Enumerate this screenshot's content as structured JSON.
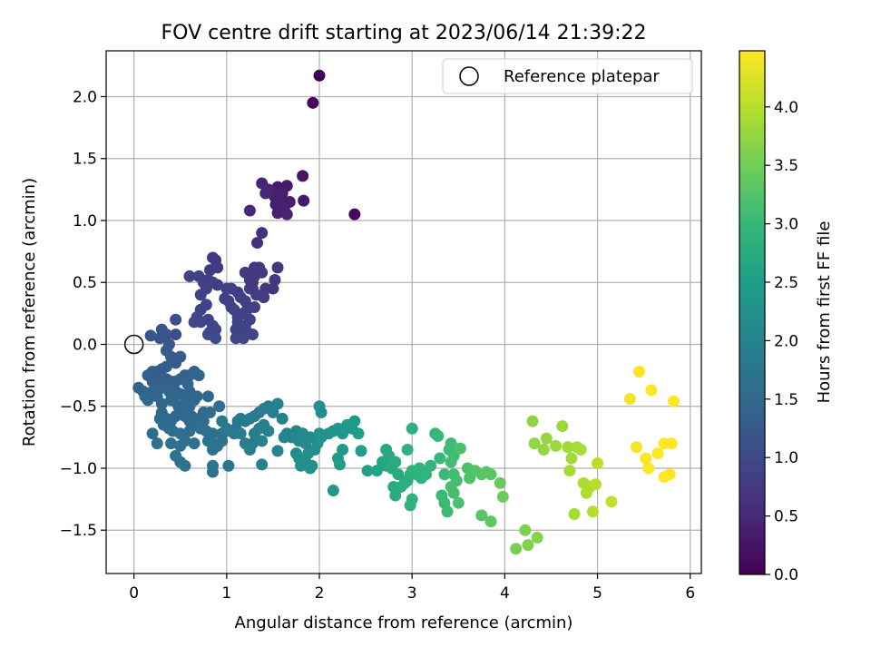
{
  "chart_data": {
    "type": "scatter",
    "title": "FOV centre drift starting at 2023/06/14 21:39:22",
    "xlabel": "Angular distance from reference (arcmin)",
    "ylabel": "Rotation from reference (arcmin)",
    "xlim": [
      -0.3,
      6.12
    ],
    "ylim": [
      -1.85,
      2.37
    ],
    "xticks": [
      0,
      1,
      2,
      3,
      4,
      5,
      6
    ],
    "yticks": [
      -1.5,
      -1.0,
      -0.5,
      0.0,
      0.5,
      1.0,
      1.5,
      2.0
    ],
    "grid": true,
    "legend": {
      "placement": "top-right",
      "entries": [
        "Reference platepar"
      ]
    },
    "reference_point": {
      "x": 0.0,
      "y": 0.0,
      "label": "Reference platepar"
    },
    "colorbar": {
      "label": "Hours from first FF file",
      "colormap": "viridis",
      "range": [
        0.0,
        4.48
      ],
      "ticks": [
        0.0,
        0.5,
        1.0,
        1.5,
        2.0,
        2.5,
        3.0,
        3.5,
        4.0
      ]
    },
    "points": [
      [
        2.0,
        2.17,
        0.0
      ],
      [
        1.93,
        1.95,
        0.05
      ],
      [
        2.38,
        1.05,
        0.12
      ],
      [
        1.82,
        1.36,
        0.25
      ],
      [
        1.65,
        1.28,
        0.3
      ],
      [
        1.55,
        1.27,
        0.32
      ],
      [
        1.6,
        1.22,
        0.35
      ],
      [
        1.83,
        1.16,
        0.3
      ],
      [
        1.52,
        1.19,
        0.35
      ],
      [
        1.58,
        1.15,
        0.38
      ],
      [
        1.5,
        1.22,
        0.4
      ],
      [
        1.68,
        1.15,
        0.38
      ],
      [
        1.53,
        1.13,
        0.38
      ],
      [
        1.62,
        1.1,
        0.42
      ],
      [
        1.55,
        1.06,
        0.4
      ],
      [
        1.65,
        1.05,
        0.45
      ],
      [
        1.45,
        1.25,
        0.42
      ],
      [
        1.38,
        1.3,
        0.45
      ],
      [
        1.42,
        1.22,
        0.5
      ],
      [
        1.25,
        1.08,
        0.5
      ],
      [
        1.58,
        1.22,
        0.38
      ],
      [
        1.38,
        0.9,
        0.6
      ],
      [
        1.33,
        0.82,
        0.65
      ],
      [
        1.3,
        0.55,
        0.7
      ],
      [
        1.35,
        0.62,
        0.72
      ],
      [
        1.28,
        0.5,
        0.7
      ],
      [
        1.42,
        0.45,
        0.75
      ],
      [
        1.52,
        0.52,
        0.72
      ],
      [
        1.55,
        0.62,
        0.7
      ],
      [
        1.5,
        0.45,
        0.75
      ],
      [
        1.4,
        0.38,
        0.8
      ],
      [
        1.32,
        0.4,
        0.8
      ],
      [
        1.25,
        0.45,
        0.82
      ],
      [
        1.2,
        0.35,
        0.85
      ],
      [
        1.22,
        0.28,
        0.85
      ],
      [
        1.3,
        0.3,
        0.85
      ],
      [
        1.25,
        0.2,
        0.88
      ],
      [
        1.2,
        0.15,
        0.9
      ],
      [
        1.15,
        0.1,
        0.9
      ],
      [
        1.1,
        0.05,
        0.92
      ],
      [
        1.18,
        0.05,
        0.92
      ],
      [
        1.22,
        0.1,
        0.9
      ],
      [
        1.28,
        0.08,
        0.92
      ],
      [
        1.12,
        0.18,
        0.9
      ],
      [
        1.05,
        0.3,
        0.88
      ],
      [
        1.0,
        0.45,
        0.85
      ],
      [
        1.05,
        0.45,
        0.85
      ],
      [
        1.12,
        0.42,
        0.85
      ],
      [
        1.2,
        0.58,
        0.78
      ],
      [
        1.27,
        0.58,
        0.78
      ],
      [
        1.3,
        0.62,
        0.75
      ],
      [
        1.38,
        0.58,
        0.75
      ],
      [
        1.25,
        0.52,
        0.78
      ],
      [
        1.28,
        0.45,
        0.78
      ],
      [
        1.15,
        0.38,
        0.85
      ],
      [
        1.08,
        0.28,
        0.88
      ],
      [
        1.12,
        0.22,
        0.88
      ],
      [
        1.18,
        0.25,
        0.88
      ],
      [
        1.1,
        0.12,
        0.9
      ],
      [
        0.98,
        0.37,
        0.85
      ],
      [
        1.02,
        0.35,
        0.85
      ],
      [
        0.85,
        0.7,
        0.75
      ],
      [
        0.88,
        0.68,
        0.78
      ],
      [
        0.9,
        0.62,
        0.78
      ],
      [
        0.82,
        0.6,
        0.78
      ],
      [
        0.8,
        0.52,
        0.8
      ],
      [
        0.85,
        0.5,
        0.82
      ],
      [
        0.9,
        0.48,
        0.82
      ],
      [
        0.78,
        0.45,
        0.85
      ],
      [
        0.72,
        0.4,
        0.88
      ],
      [
        0.7,
        0.55,
        0.85
      ],
      [
        0.75,
        0.5,
        0.85
      ],
      [
        0.78,
        0.32,
        0.9
      ],
      [
        0.72,
        0.28,
        0.9
      ],
      [
        0.68,
        0.22,
        0.92
      ],
      [
        0.65,
        0.18,
        0.95
      ],
      [
        0.72,
        0.18,
        0.92
      ],
      [
        0.8,
        0.2,
        0.9
      ],
      [
        0.85,
        0.15,
        0.95
      ],
      [
        0.82,
        0.1,
        0.98
      ],
      [
        0.88,
        0.12,
        0.95
      ],
      [
        0.6,
        0.55,
        0.9
      ],
      [
        0.88,
        0.05,
        1.0
      ],
      [
        0.8,
        0.08,
        1.0
      ],
      [
        0.45,
        0.2,
        1.05
      ],
      [
        0.45,
        0.08,
        1.1
      ],
      [
        0.3,
        0.12,
        1.12
      ],
      [
        0.35,
        0.08,
        1.15
      ],
      [
        0.28,
        0.05,
        1.15
      ],
      [
        0.18,
        0.07,
        1.18
      ],
      [
        0.38,
        0.0,
        1.2
      ],
      [
        0.35,
        -0.05,
        1.25
      ],
      [
        0.4,
        -0.1,
        1.25
      ],
      [
        0.5,
        -0.1,
        1.25
      ],
      [
        0.45,
        -0.15,
        1.28
      ],
      [
        0.35,
        -0.18,
        1.3
      ],
      [
        0.3,
        -0.2,
        1.3
      ],
      [
        0.25,
        -0.22,
        1.3
      ],
      [
        0.2,
        -0.22,
        1.32
      ],
      [
        0.15,
        -0.25,
        1.35
      ],
      [
        0.2,
        -0.3,
        1.35
      ],
      [
        0.28,
        -0.3,
        1.35
      ],
      [
        0.35,
        -0.28,
        1.35
      ],
      [
        0.4,
        -0.3,
        1.38
      ],
      [
        0.45,
        -0.3,
        1.38
      ],
      [
        0.5,
        -0.28,
        1.38
      ],
      [
        0.55,
        -0.25,
        1.4
      ],
      [
        0.6,
        -0.25,
        1.4
      ],
      [
        0.65,
        -0.22,
        1.4
      ],
      [
        0.7,
        -0.25,
        1.42
      ],
      [
        0.3,
        -0.35,
        1.4
      ],
      [
        0.38,
        -0.38,
        1.42
      ],
      [
        0.45,
        -0.38,
        1.42
      ],
      [
        0.5,
        -0.4,
        1.42
      ],
      [
        0.55,
        -0.42,
        1.45
      ],
      [
        0.6,
        -0.38,
        1.45
      ],
      [
        0.25,
        -0.42,
        1.45
      ],
      [
        0.3,
        -0.48,
        1.45
      ],
      [
        0.4,
        -0.45,
        1.48
      ],
      [
        0.48,
        -0.5,
        1.48
      ],
      [
        0.55,
        -0.45,
        1.5
      ],
      [
        0.6,
        -0.5,
        1.5
      ],
      [
        0.05,
        -0.35,
        1.45
      ],
      [
        0.1,
        -0.38,
        1.45
      ],
      [
        0.15,
        -0.45,
        1.48
      ],
      [
        0.3,
        -0.55,
        1.5
      ],
      [
        0.35,
        -0.6,
        1.52
      ],
      [
        0.28,
        -0.6,
        1.52
      ],
      [
        0.4,
        -0.62,
        1.55
      ],
      [
        0.45,
        -0.58,
        1.52
      ],
      [
        0.55,
        -0.58,
        1.55
      ],
      [
        0.62,
        -0.58,
        1.55
      ],
      [
        0.7,
        -0.6,
        1.55
      ],
      [
        0.75,
        -0.62,
        1.55
      ],
      [
        0.32,
        -0.65,
        1.55
      ],
      [
        0.38,
        -0.68,
        1.58
      ],
      [
        0.42,
        -0.7,
        1.58
      ],
      [
        0.5,
        -0.72,
        1.6
      ],
      [
        0.6,
        -0.7,
        1.6
      ],
      [
        0.65,
        -0.65,
        1.6
      ],
      [
        0.72,
        -0.68,
        1.6
      ],
      [
        0.78,
        -0.7,
        1.62
      ],
      [
        0.85,
        -0.72,
        1.62
      ],
      [
        0.55,
        -0.78,
        1.62
      ],
      [
        0.65,
        -0.8,
        1.65
      ],
      [
        0.5,
        -0.82,
        1.65
      ],
      [
        0.4,
        -0.8,
        1.65
      ],
      [
        0.25,
        -0.8,
        1.65
      ],
      [
        0.2,
        -0.72,
        1.62
      ],
      [
        0.85,
        -0.8,
        1.68
      ],
      [
        0.9,
        -0.82,
        1.68
      ],
      [
        0.95,
        -0.78,
        1.68
      ],
      [
        0.85,
        -0.85,
        1.7
      ],
      [
        0.8,
        -0.78,
        1.7
      ],
      [
        0.45,
        -0.9,
        1.7
      ],
      [
        0.5,
        -0.95,
        1.72
      ],
      [
        0.55,
        -0.98,
        1.72
      ],
      [
        0.85,
        -0.98,
        1.75
      ],
      [
        0.85,
        -1.03,
        1.75
      ],
      [
        1.02,
        -0.98,
        1.75
      ],
      [
        0.8,
        -0.42,
        1.5
      ],
      [
        0.75,
        -0.55,
        1.55
      ],
      [
        0.65,
        -0.45,
        1.52
      ],
      [
        0.82,
        -0.55,
        1.58
      ],
      [
        0.92,
        -0.5,
        1.6
      ],
      [
        0.95,
        -0.72,
        1.65
      ],
      [
        1.0,
        -0.7,
        1.7
      ],
      [
        1.1,
        -0.68,
        1.72
      ],
      [
        1.12,
        -0.62,
        1.75
      ],
      [
        0.12,
        -0.42,
        1.5
      ],
      [
        0.2,
        -0.38,
        1.48
      ],
      [
        0.42,
        -0.45,
        1.48
      ],
      [
        0.52,
        -0.55,
        1.52
      ],
      [
        0.6,
        -0.62,
        1.55
      ],
      [
        0.68,
        -0.42,
        1.5
      ],
      [
        0.58,
        -0.32,
        1.45
      ],
      [
        1.15,
        -0.6,
        1.8
      ],
      [
        1.2,
        -0.62,
        1.82
      ],
      [
        1.25,
        -0.6,
        1.85
      ],
      [
        1.3,
        -0.58,
        1.85
      ],
      [
        1.35,
        -0.55,
        1.88
      ],
      [
        1.4,
        -0.52,
        1.9
      ],
      [
        1.45,
        -0.5,
        1.92
      ],
      [
        1.5,
        -0.55,
        1.95
      ],
      [
        1.55,
        -0.48,
        1.95
      ],
      [
        1.6,
        -0.6,
        1.98
      ],
      [
        1.65,
        -0.72,
        2.0
      ],
      [
        1.7,
        -0.75,
        2.02
      ],
      [
        1.75,
        -0.7,
        2.05
      ],
      [
        1.78,
        -0.78,
        2.08
      ],
      [
        1.82,
        -0.72,
        2.1
      ],
      [
        1.85,
        -0.8,
        2.12
      ],
      [
        1.9,
        -0.75,
        2.12
      ],
      [
        1.35,
        -0.68,
        1.92
      ],
      [
        1.4,
        -0.65,
        1.95
      ],
      [
        1.45,
        -0.7,
        1.98
      ],
      [
        1.3,
        -0.72,
        1.9
      ],
      [
        1.28,
        -0.8,
        1.92
      ],
      [
        1.38,
        -0.78,
        1.95
      ],
      [
        1.15,
        -0.72,
        1.85
      ],
      [
        1.2,
        -0.8,
        1.88
      ],
      [
        1.08,
        -0.72,
        1.85
      ],
      [
        1.0,
        -0.68,
        1.82
      ],
      [
        0.95,
        -0.62,
        1.8
      ],
      [
        1.25,
        -0.85,
        1.95
      ],
      [
        1.38,
        -0.97,
        1.98
      ],
      [
        1.55,
        -0.86,
        2.02
      ],
      [
        1.75,
        -0.88,
        2.15
      ],
      [
        1.78,
        -0.92,
        2.18
      ],
      [
        1.8,
        -0.98,
        2.2
      ],
      [
        1.85,
        -0.95,
        2.2
      ],
      [
        1.88,
        -0.88,
        2.22
      ],
      [
        1.92,
        -0.98,
        2.22
      ],
      [
        1.9,
        -1.0,
        2.25
      ],
      [
        1.95,
        -0.85,
        2.22
      ],
      [
        1.98,
        -0.8,
        2.25
      ],
      [
        2.0,
        -0.72,
        2.25
      ],
      [
        2.02,
        -0.75,
        2.28
      ],
      [
        2.0,
        -0.5,
        2.2
      ],
      [
        2.02,
        -0.55,
        2.22
      ],
      [
        2.1,
        -0.72,
        2.3
      ],
      [
        2.15,
        -0.7,
        2.32
      ],
      [
        2.2,
        -0.68,
        2.35
      ],
      [
        2.25,
        -0.72,
        2.38
      ],
      [
        2.3,
        -0.65,
        2.4
      ],
      [
        2.38,
        -0.62,
        2.42
      ],
      [
        2.42,
        -0.72,
        2.45
      ],
      [
        2.25,
        -0.85,
        2.4
      ],
      [
        2.2,
        -0.92,
        2.42
      ],
      [
        2.22,
        -0.97,
        2.45
      ],
      [
        2.15,
        -1.18,
        2.35
      ],
      [
        2.45,
        -0.86,
        2.5
      ],
      [
        2.52,
        -1.02,
        2.52
      ],
      [
        1.62,
        -0.75,
        2.05
      ],
      [
        2.35,
        -0.68,
        2.4
      ],
      [
        2.62,
        -1.02,
        2.58
      ],
      [
        2.68,
        -0.95,
        2.62
      ],
      [
        2.72,
        -0.98,
        2.65
      ],
      [
        2.72,
        -0.85,
        2.68
      ],
      [
        2.75,
        -0.9,
        2.7
      ],
      [
        2.78,
        -1.0,
        2.72
      ],
      [
        2.82,
        -0.95,
        2.75
      ],
      [
        2.85,
        -1.05,
        2.75
      ],
      [
        2.8,
        -1.15,
        2.72
      ],
      [
        2.82,
        -1.22,
        2.75
      ],
      [
        2.88,
        -1.15,
        2.78
      ],
      [
        2.92,
        -1.12,
        2.8
      ],
      [
        2.95,
        -1.1,
        2.8
      ],
      [
        2.98,
        -1.05,
        2.82
      ],
      [
        3.0,
        -1.02,
        2.85
      ],
      [
        3.05,
        -1.05,
        2.85
      ],
      [
        3.1,
        -1.08,
        2.88
      ],
      [
        2.98,
        -1.3,
        2.85
      ],
      [
        3.0,
        -1.25,
        2.88
      ],
      [
        3.0,
        -0.68,
        2.82
      ],
      [
        2.95,
        -0.85,
        2.85
      ],
      [
        3.08,
        -1.0,
        2.9
      ],
      [
        3.15,
        -1.05,
        2.92
      ],
      [
        3.2,
        -0.98,
        2.95
      ],
      [
        3.25,
        -0.72,
        2.95
      ],
      [
        3.28,
        -0.74,
        2.98
      ],
      [
        3.3,
        -0.92,
        3.0
      ],
      [
        3.35,
        -1.05,
        3.02
      ],
      [
        3.32,
        -1.22,
        3.02
      ],
      [
        3.35,
        -1.28,
        3.05
      ],
      [
        3.38,
        -1.35,
        3.05
      ],
      [
        3.4,
        -0.85,
        3.05
      ],
      [
        3.42,
        -0.8,
        3.08
      ],
      [
        3.45,
        -0.9,
        3.1
      ],
      [
        3.42,
        -0.95,
        3.1
      ],
      [
        3.45,
        -1.05,
        3.12
      ],
      [
        3.48,
        -1.1,
        3.12
      ],
      [
        3.42,
        -1.15,
        3.15
      ],
      [
        3.45,
        -1.2,
        3.15
      ],
      [
        3.5,
        -1.28,
        3.18
      ],
      [
        3.52,
        -0.84,
        3.2
      ],
      [
        3.6,
        -1.0,
        3.2
      ],
      [
        3.62,
        -1.08,
        3.22
      ],
      [
        3.68,
        -1.02,
        3.25
      ],
      [
        3.75,
        -1.05,
        3.28
      ],
      [
        3.8,
        -1.03,
        3.3
      ],
      [
        3.85,
        -1.05,
        3.32
      ],
      [
        3.75,
        -1.38,
        3.3
      ],
      [
        3.85,
        -1.43,
        3.35
      ],
      [
        3.95,
        -1.12,
        3.42
      ],
      [
        3.98,
        -1.23,
        3.45
      ],
      [
        4.12,
        -1.65,
        3.55
      ],
      [
        4.22,
        -1.5,
        3.6
      ],
      [
        4.25,
        -1.62,
        3.62
      ],
      [
        4.35,
        -1.56,
        3.65
      ],
      [
        4.3,
        -0.62,
        3.7
      ],
      [
        4.32,
        -0.8,
        3.72
      ],
      [
        4.42,
        -0.85,
        3.75
      ],
      [
        4.45,
        -0.76,
        3.78
      ],
      [
        4.55,
        -0.82,
        3.8
      ],
      [
        4.62,
        -0.66,
        3.82
      ],
      [
        4.68,
        -0.83,
        3.85
      ],
      [
        4.72,
        -0.92,
        3.85
      ],
      [
        4.7,
        -1.02,
        3.88
      ],
      [
        4.78,
        -0.83,
        3.88
      ],
      [
        4.82,
        -0.85,
        3.9
      ],
      [
        4.75,
        -1.37,
        3.88
      ],
      [
        4.85,
        -1.12,
        3.92
      ],
      [
        4.88,
        -1.2,
        3.95
      ],
      [
        4.92,
        -1.15,
        3.95
      ],
      [
        4.95,
        -1.35,
        3.98
      ],
      [
        4.98,
        -1.13,
        4.0
      ],
      [
        5.0,
        -0.96,
        4.02
      ],
      [
        5.15,
        -1.27,
        4.08
      ],
      [
        5.35,
        -0.44,
        4.4
      ],
      [
        5.42,
        -0.83,
        4.42
      ],
      [
        5.45,
        -0.22,
        4.45
      ],
      [
        5.52,
        -0.92,
        4.45
      ],
      [
        5.55,
        -1.0,
        4.46
      ],
      [
        5.58,
        -0.37,
        4.46
      ],
      [
        5.65,
        -0.88,
        4.46
      ],
      [
        5.72,
        -0.8,
        4.47
      ],
      [
        5.72,
        -1.07,
        4.47
      ],
      [
        5.78,
        -1.05,
        4.47
      ],
      [
        5.8,
        -0.8,
        4.48
      ],
      [
        5.82,
        -0.46,
        4.48
      ]
    ]
  }
}
